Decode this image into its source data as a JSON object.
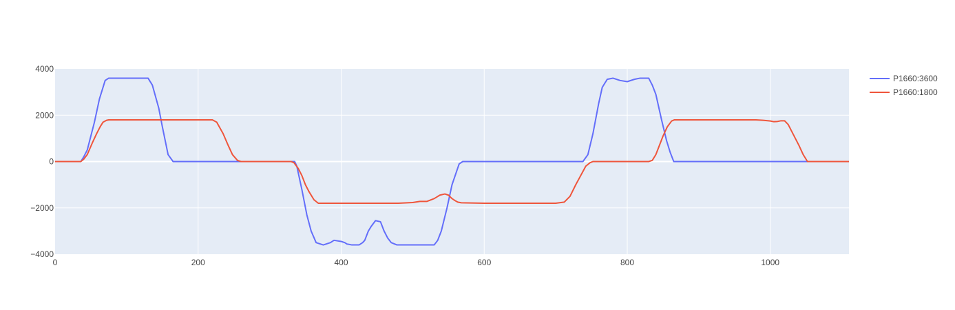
{
  "chart_data": {
    "type": "line",
    "title": "",
    "xlabel": "",
    "ylabel": "",
    "xlim": [
      0,
      1110
    ],
    "ylim": [
      -4000,
      4000
    ],
    "x_ticks": [
      0,
      200,
      400,
      600,
      800,
      1000
    ],
    "y_ticks": [
      -4000,
      -2000,
      0,
      2000,
      4000
    ],
    "y_tick_labels": [
      "−4000",
      "−2000",
      "0",
      "2000",
      "4000"
    ],
    "grid": true,
    "legend_position": "top-right",
    "plot_background": "#e5ecf6",
    "series": [
      {
        "name": "P1660:3600",
        "color": "#636efa",
        "x": [
          0,
          36,
          40,
          45,
          55,
          62,
          70,
          75,
          130,
          136,
          145,
          150,
          158,
          165,
          170,
          335,
          338,
          345,
          352,
          358,
          365,
          375,
          385,
          390,
          400,
          405,
          408,
          415,
          425,
          430,
          433,
          438,
          442,
          448,
          455,
          460,
          465,
          470,
          478,
          490,
          505,
          520,
          530,
          535,
          540,
          548,
          555,
          565,
          570,
          600,
          700,
          738,
          745,
          752,
          760,
          765,
          772,
          780,
          790,
          800,
          810,
          818,
          830,
          835,
          840,
          848,
          855,
          860,
          865,
          1110
        ],
        "y": [
          0,
          0,
          200,
          500,
          1700,
          2700,
          3500,
          3600,
          3600,
          3300,
          2300,
          1500,
          300,
          0,
          0,
          0,
          -200,
          -1200,
          -2300,
          -3000,
          -3500,
          -3600,
          -3500,
          -3400,
          -3450,
          -3500,
          -3560,
          -3600,
          -3600,
          -3500,
          -3400,
          -3000,
          -2800,
          -2550,
          -2600,
          -3000,
          -3300,
          -3500,
          -3600,
          -3600,
          -3600,
          -3600,
          -3600,
          -3400,
          -3000,
          -2000,
          -1000,
          -100,
          0,
          0,
          0,
          0,
          300,
          1200,
          2500,
          3200,
          3550,
          3600,
          3500,
          3450,
          3550,
          3600,
          3600,
          3300,
          2900,
          1800,
          900,
          400,
          0,
          0
        ]
      },
      {
        "name": "P1660:1800",
        "color": "#ef553b",
        "x": [
          0,
          36,
          40,
          45,
          52,
          58,
          63,
          67,
          72,
          75,
          220,
          226,
          235,
          242,
          248,
          255,
          260,
          330,
          334,
          340,
          345,
          350,
          355,
          362,
          368,
          380,
          420,
          460,
          480,
          500,
          510,
          520,
          530,
          538,
          545,
          550,
          555,
          560,
          563,
          568,
          600,
          700,
          712,
          720,
          728,
          735,
          742,
          748,
          752,
          800,
          830,
          835,
          840,
          845,
          850,
          856,
          862,
          866,
          870,
          900,
          980,
          990,
          1000,
          1005,
          1010,
          1015,
          1020,
          1025,
          1030,
          1040,
          1046,
          1052,
          1110
        ],
        "y": [
          0,
          0,
          100,
          300,
          800,
          1200,
          1500,
          1700,
          1780,
          1800,
          1800,
          1700,
          1200,
          700,
          300,
          50,
          0,
          0,
          -50,
          -300,
          -600,
          -1000,
          -1300,
          -1650,
          -1800,
          -1800,
          -1800,
          -1800,
          -1800,
          -1770,
          -1720,
          -1720,
          -1600,
          -1450,
          -1400,
          -1450,
          -1600,
          -1700,
          -1750,
          -1780,
          -1800,
          -1800,
          -1750,
          -1500,
          -1000,
          -600,
          -200,
          -50,
          0,
          0,
          0,
          50,
          300,
          700,
          1100,
          1500,
          1750,
          1800,
          1800,
          1800,
          1800,
          1780,
          1750,
          1720,
          1730,
          1760,
          1760,
          1600,
          1300,
          700,
          300,
          0,
          0
        ]
      }
    ]
  }
}
